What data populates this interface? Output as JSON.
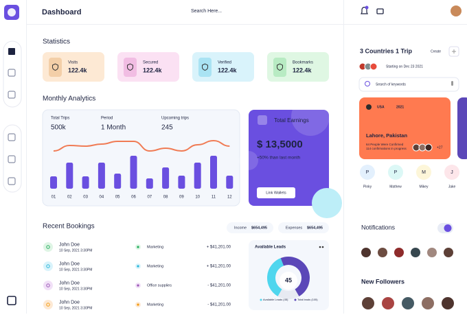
{
  "header": {
    "title": "Dashboard",
    "search": "Search Here..."
  },
  "statistics": {
    "title": "Statistics",
    "cards": [
      {
        "label": "Visits",
        "value": "122.4k"
      },
      {
        "label": "Secured",
        "value": "122.4k"
      },
      {
        "label": "Verified",
        "value": "122.4k"
      },
      {
        "label": "Bookmarks",
        "value": "122.4k"
      }
    ]
  },
  "analytics": {
    "title": "Monthly Analytics",
    "summary": [
      {
        "label": "Total Trips",
        "value": "500k"
      },
      {
        "label": "Period",
        "value": "1 Month"
      },
      {
        "label": "Upcoming trips",
        "value": "245"
      }
    ],
    "chart": {
      "type": "bar",
      "categories": [
        "01",
        "02",
        "03",
        "04",
        "05",
        "06",
        "07",
        "08",
        "09",
        "10",
        "11",
        "12"
      ],
      "values": [
        18,
        38,
        18,
        38,
        22,
        48,
        15,
        31,
        19,
        38,
        48,
        19
      ],
      "line_values": [
        55,
        63,
        62,
        65,
        69,
        69,
        55,
        59,
        55,
        64,
        70,
        62
      ],
      "ylim": [
        0,
        80
      ],
      "color": "#6a4fe0",
      "line_color": "#f07b54"
    }
  },
  "earnings": {
    "title": "Total Earnings",
    "amount": "$ 13,5000",
    "change": "+50% than last month",
    "button": "Link Wallets"
  },
  "bookings": {
    "title": "Recent Bookings",
    "income_label": "Income",
    "income": "$654,495",
    "expenses_label": "Expenses",
    "expenses": "$654,495",
    "rows": [
      {
        "name": "John Doe",
        "date": "10 Sep, 2021 3:30PM",
        "category": "Marketing",
        "amount": "+ $41,201.00"
      },
      {
        "name": "John Doe",
        "date": "10 Sep, 2021 3:30PM",
        "category": "Marketing",
        "amount": "+ $41,201.00"
      },
      {
        "name": "John Doe",
        "date": "10 Sep, 2021 3:30PM",
        "category": "Office supplies",
        "amount": "- $41,201.00"
      },
      {
        "name": "John Doe",
        "date": "10 Sep, 2021 3:30PM",
        "category": "Marketing",
        "amount": "- $41,201.00"
      }
    ]
  },
  "leads": {
    "title": "Available Leads",
    "center": "45",
    "segments": [
      {
        "value": 45,
        "color": "#4fd6ee"
      },
      {
        "value": 60,
        "color": "#5b47b8"
      }
    ],
    "legend": [
      "Available Leads (45)",
      "Total leads (105)"
    ]
  },
  "trip": {
    "title": "3 Countries 1 Trip",
    "create": "Create",
    "start": "Starting on Dec 23 2021",
    "search": "Search of keywords",
    "card": {
      "country": "USA",
      "year": "2021",
      "city": "Lahore, Pakistan",
      "confirmed": "64 People Were Confirmed",
      "progress": "114 confirmations in progress",
      "extra": "+27"
    },
    "people": [
      {
        "initial": "P",
        "name": "Pinky"
      },
      {
        "initial": "P",
        "name": "Mathew"
      },
      {
        "initial": "M",
        "name": "Mikey"
      },
      {
        "initial": "J",
        "name": "Jake"
      }
    ]
  },
  "notifications": {
    "title": "Notifications"
  },
  "followers": {
    "title": "New Followers"
  }
}
